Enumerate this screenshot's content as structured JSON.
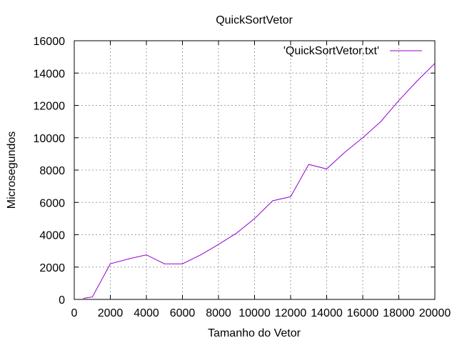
{
  "chart_data": {
    "type": "line",
    "title": "QuickSortVetor",
    "xlabel": "Tamanho do Vetor",
    "ylabel": "Microsegundos",
    "xlim": [
      0,
      20000
    ],
    "ylim": [
      0,
      16000
    ],
    "xticks": [
      0,
      2000,
      4000,
      6000,
      8000,
      10000,
      12000,
      14000,
      16000,
      18000,
      20000
    ],
    "yticks": [
      0,
      2000,
      4000,
      6000,
      8000,
      10000,
      12000,
      14000,
      16000
    ],
    "grid": true,
    "legend_position": "top-right",
    "series": [
      {
        "name": "'QuickSortVetor.txt'",
        "color": "#9400d3",
        "x": [
          500,
          1000,
          2000,
          3000,
          4000,
          5000,
          6000,
          7000,
          8000,
          9000,
          10000,
          11000,
          12000,
          13000,
          14000,
          15000,
          16000,
          17000,
          18000,
          19000,
          20000
        ],
        "y": [
          60,
          150,
          2200,
          2500,
          2760,
          2200,
          2200,
          2750,
          3400,
          4100,
          5000,
          6100,
          6350,
          8350,
          8070,
          9100,
          10000,
          11000,
          12300,
          13500,
          14600
        ]
      }
    ]
  }
}
